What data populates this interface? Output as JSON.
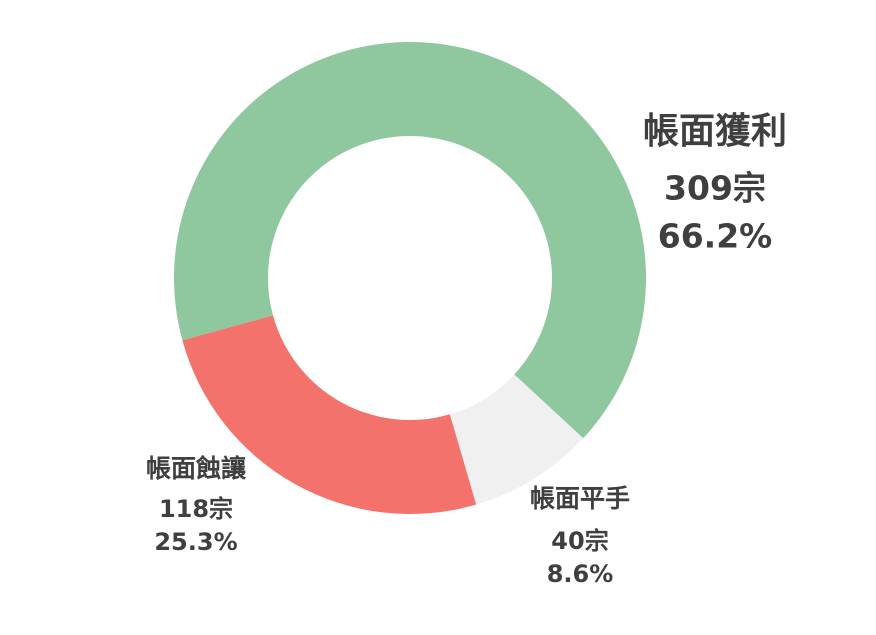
{
  "chart_data": {
    "type": "donut",
    "categories": [
      "帳面獲利",
      "帳面平手",
      "帳面蝕讓"
    ],
    "values": [
      66.2,
      8.6,
      25.3
    ],
    "value_labels": [
      "66.2%",
      "8.6%",
      "25.3%"
    ],
    "count_labels": [
      "309宗",
      "40宗",
      "118宗"
    ],
    "colors": [
      "#8fc79f",
      "#f0f0f0",
      "#f4726c"
    ]
  }
}
